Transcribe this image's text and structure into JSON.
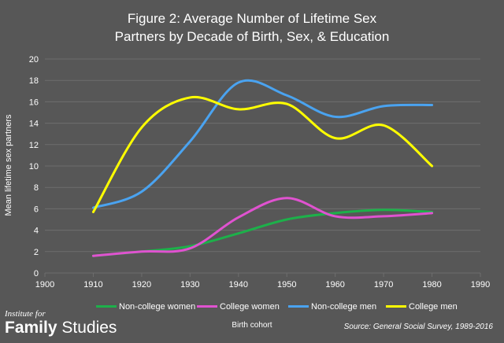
{
  "title_lines": [
    "Figure 2: Average Number of Lifetime Sex",
    "Partners by Decade of Birth, Sex, & Education"
  ],
  "source": "Source: General Social Survey, 1989-2016",
  "logo": {
    "small": "Institute for",
    "bold": "Family",
    "regular": "Studies"
  },
  "colors": {
    "background": "#575757",
    "grid": "#6e6e6e",
    "text": "#ffffff"
  },
  "chart_data": {
    "type": "line",
    "xlabel": "Birth cohort",
    "ylabel": "Mean lifetime sex partners",
    "xlim": [
      1900,
      1990
    ],
    "ylim": [
      0,
      20
    ],
    "x_ticks": [
      1900,
      1910,
      1920,
      1930,
      1940,
      1950,
      1960,
      1970,
      1980,
      1990
    ],
    "y_ticks": [
      0,
      2,
      4,
      6,
      8,
      10,
      12,
      14,
      16,
      18,
      20
    ],
    "grid": true,
    "smooth": true,
    "legend_position": "bottom",
    "x": [
      1910,
      1920,
      1930,
      1940,
      1950,
      1960,
      1970,
      1980
    ],
    "series": [
      {
        "name": "Non-college women",
        "color": "#1db04a",
        "values": [
          1.6,
          2.0,
          2.5,
          3.7,
          5.0,
          5.6,
          5.9,
          5.7
        ]
      },
      {
        "name": "College women",
        "color": "#e052d0",
        "values": [
          1.6,
          2.0,
          2.3,
          5.2,
          7.0,
          5.3,
          5.3,
          5.6
        ]
      },
      {
        "name": "Non-college men",
        "color": "#4aa3f0",
        "values": [
          6.1,
          7.6,
          12.3,
          17.8,
          16.6,
          14.6,
          15.6,
          15.7
        ]
      },
      {
        "name": "College men",
        "color": "#ffff00",
        "values": [
          5.7,
          13.6,
          16.4,
          15.3,
          15.8,
          12.6,
          13.8,
          10.0
        ]
      }
    ]
  }
}
